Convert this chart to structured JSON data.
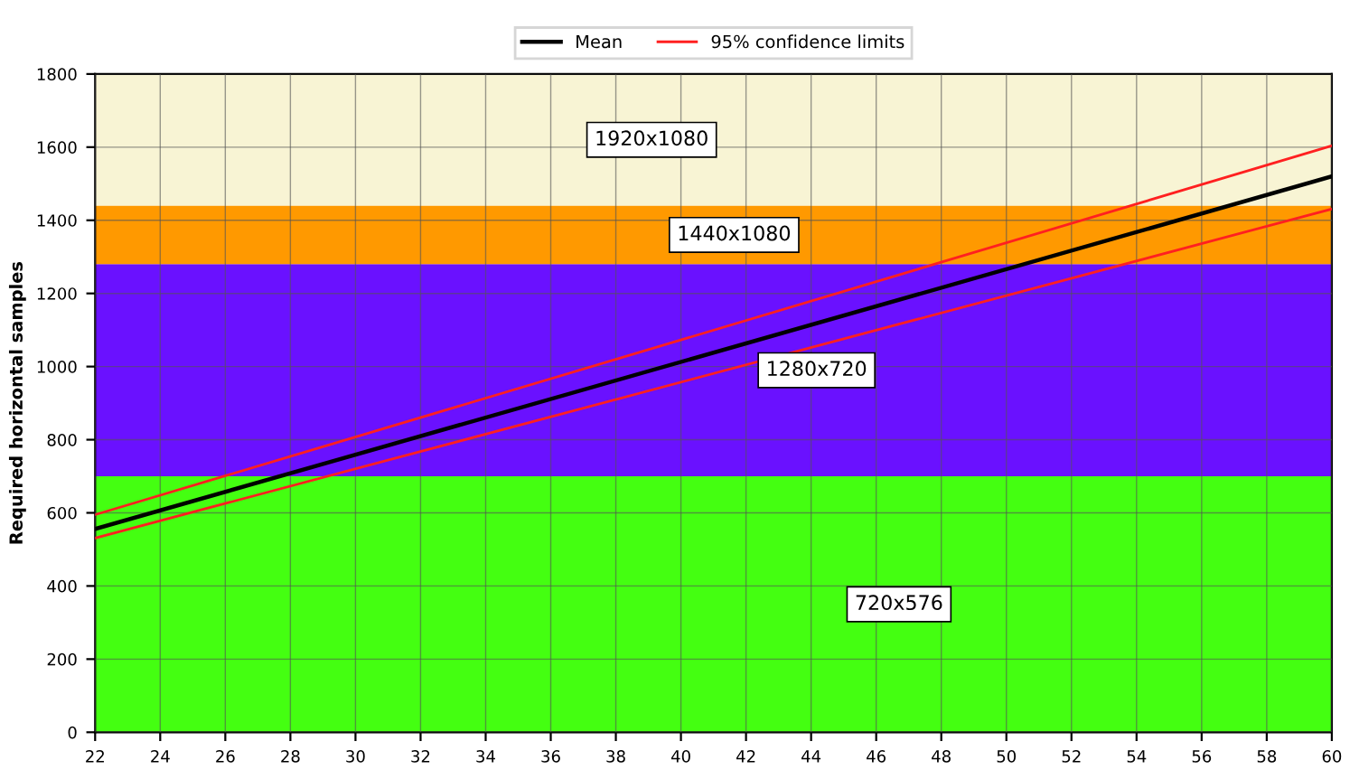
{
  "chart_data": {
    "type": "line",
    "ylabel": "Required horizontal samples",
    "x": [
      22,
      60
    ],
    "series": [
      {
        "name": "Mean",
        "color": "#000000",
        "values": [
          556,
          1520
        ],
        "line_style": "solid"
      },
      {
        "name": "95% confidence limits",
        "color": "#ff2020",
        "values": [
          595,
          1604
        ],
        "line_style": "solid"
      },
      {
        "color": "#ff2020",
        "values": [
          531,
          1431
        ],
        "line_style": "solid"
      }
    ],
    "bands": [
      {
        "axis": "y",
        "from": 0,
        "to": 700,
        "label": "720x576",
        "color": "#44ff11"
      },
      {
        "axis": "y",
        "from": 700,
        "to": 1280,
        "label": "1280x720",
        "color": "#6a11ff"
      },
      {
        "axis": "y",
        "from": 1280,
        "to": 1440,
        "label": "1440x1080",
        "color": "#ff9900"
      },
      {
        "axis": "y",
        "from": 1440,
        "to": 1800,
        "label": "1920x1080",
        "color": "#f8f4d4"
      }
    ],
    "xlim": [
      22,
      60
    ],
    "ylim": [
      0,
      1800
    ],
    "xticks": [
      22,
      24,
      26,
      28,
      30,
      32,
      34,
      36,
      38,
      40,
      42,
      44,
      46,
      48,
      50,
      52,
      54,
      56,
      58,
      60
    ],
    "yticks": [
      0,
      200,
      400,
      600,
      800,
      1000,
      1200,
      1400,
      1600,
      1800
    ],
    "grid": true,
    "legend": "top"
  }
}
